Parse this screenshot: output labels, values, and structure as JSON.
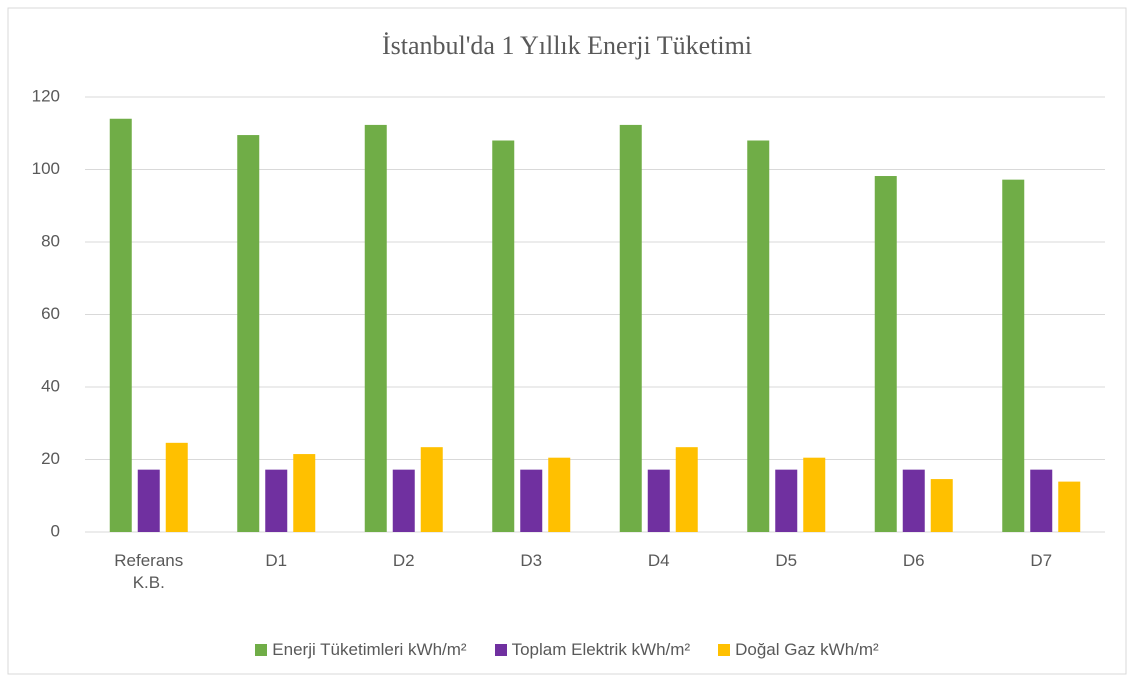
{
  "chart_data": {
    "type": "bar",
    "title": "İstanbul'da 1 Yıllık Enerji Tüketimi",
    "categories": [
      "Referans K.B.",
      "D1",
      "D2",
      "D3",
      "D4",
      "D5",
      "D6",
      "D7"
    ],
    "series": [
      {
        "name": "Enerji Tüketimleri kWh/m²",
        "color": "#70ad47",
        "values": [
          114,
          109.5,
          112.3,
          108,
          112.3,
          108,
          98.2,
          97.2
        ]
      },
      {
        "name": "Toplam Elektrik kWh/m²",
        "color": "#7030a0",
        "values": [
          17.2,
          17.2,
          17.2,
          17.2,
          17.2,
          17.2,
          17.2,
          17.2
        ]
      },
      {
        "name": "Doğal Gaz kWh/m²",
        "color": "#ffc000",
        "values": [
          24.6,
          21.5,
          23.4,
          20.5,
          23.4,
          20.5,
          14.6,
          13.9
        ]
      }
    ],
    "ylim": [
      0,
      120
    ],
    "yticks": [
      0,
      20,
      40,
      60,
      80,
      100,
      120
    ],
    "grid": true,
    "legend": "bottom"
  }
}
